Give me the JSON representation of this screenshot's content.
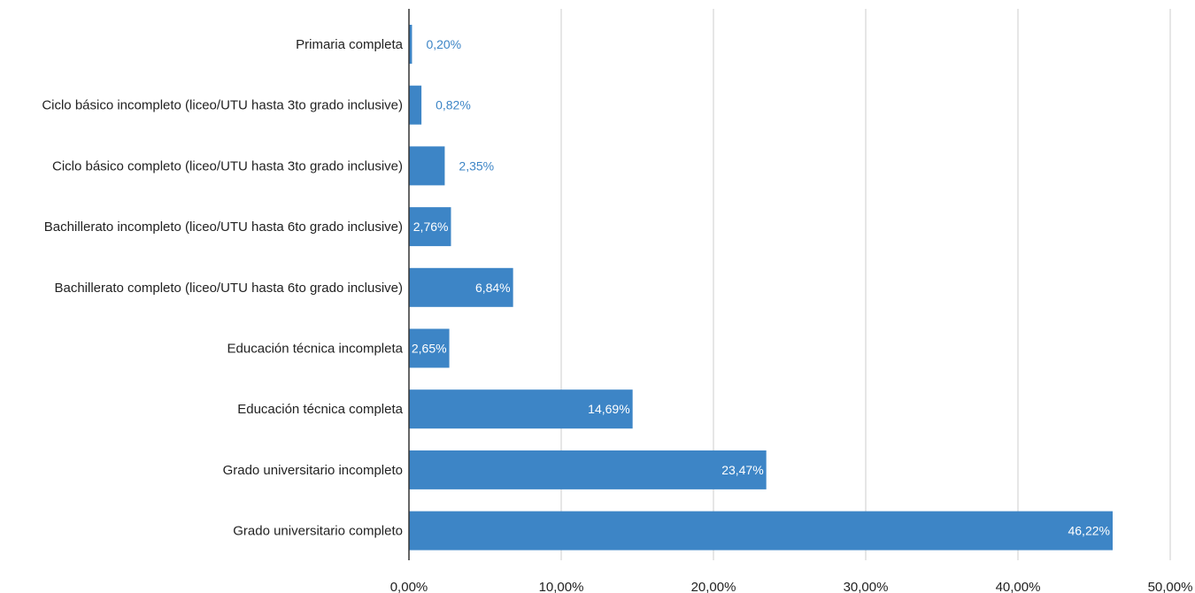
{
  "chart_data": {
    "type": "bar",
    "orientation": "horizontal",
    "title": "",
    "xlabel": "",
    "ylabel": "",
    "categories": [
      "Primaria completa",
      "Ciclo básico incompleto (liceo/UTU hasta 3to grado inclusive)",
      "Ciclo básico completo (liceo/UTU hasta 3to grado inclusive)",
      "Bachillerato incompleto (liceo/UTU hasta 6to grado inclusive)",
      "Bachillerato completo (liceo/UTU hasta 6to grado inclusive)",
      "Educación técnica incompleta",
      "Educación técnica completa",
      "Grado universitario incompleto",
      "Grado universitario completo"
    ],
    "values": [
      0.2,
      0.82,
      2.35,
      2.76,
      6.84,
      2.65,
      14.69,
      23.47,
      46.22
    ],
    "value_labels": [
      "0,20%",
      "0,82%",
      "2,35%",
      "2,76%",
      "6,84%",
      "2,65%",
      "14,69%",
      "23,47%",
      "46,22%"
    ],
    "xlim": [
      0,
      50
    ],
    "x_ticks": [
      0,
      10,
      20,
      30,
      40,
      50
    ],
    "x_tick_labels": [
      "0,00%",
      "10,00%",
      "20,00%",
      "30,00%",
      "40,00%",
      "50,00%"
    ],
    "grid": true,
    "legend": "none",
    "colors": {
      "bar": "#3d85c6",
      "label_inside": "#ffffff",
      "label_outside": "#3d85c6",
      "grid": "#cccccc",
      "axis": "#333333"
    }
  }
}
